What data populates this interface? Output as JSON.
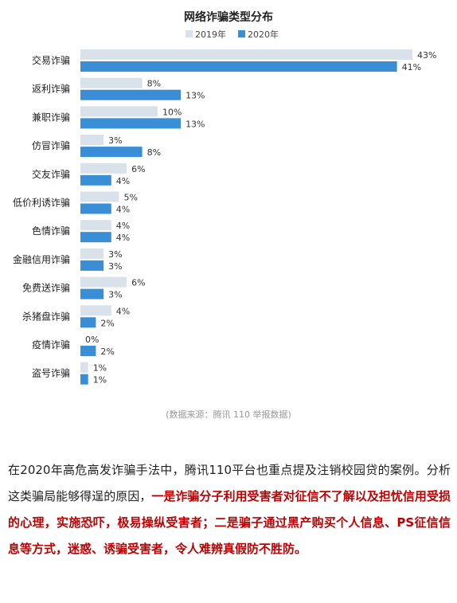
{
  "chart_data": {
    "type": "bar",
    "orientation": "horizontal",
    "title": "网络诈骗类型分布",
    "legend_position": "top",
    "grid": false,
    "xlim": [
      0,
      43
    ],
    "categories": [
      "交易诈骗",
      "返利诈骗",
      "兼职诈骗",
      "仿冒诈骗",
      "交友诈骗",
      "低价利诱诈骗",
      "色情诈骗",
      "金融信用诈骗",
      "免费送诈骗",
      "杀猪盘诈骗",
      "疫情诈骗",
      "盗号诈骗"
    ],
    "series": [
      {
        "name": "2019年",
        "color": "#d9e1ea",
        "values": [
          43,
          8,
          10,
          3,
          6,
          5,
          4,
          3,
          6,
          4,
          0,
          1
        ],
        "labels": [
          "43%",
          "8%",
          "10%",
          "3%",
          "6%",
          "5%",
          "4%",
          "3%",
          "6%",
          "4%",
          "0%",
          "1%"
        ]
      },
      {
        "name": "2020年",
        "color": "#3a8ed6",
        "values": [
          41,
          13,
          13,
          8,
          4,
          4,
          4,
          3,
          3,
          2,
          2,
          1
        ],
        "labels": [
          "41%",
          "13%",
          "13%",
          "8%",
          "4%",
          "4%",
          "4%",
          "3%",
          "3%",
          "2%",
          "2%",
          "1%"
        ]
      }
    ],
    "source_note": "(数据来源：腾讯 110 举报数据)"
  },
  "paragraph": {
    "normal1": "在2020年高危高发诈骗手法中，腾讯110平台也重点提及注销校园贷的案例。分析这类骗局能够得逞的原因，",
    "highlight1": "一是诈骗分子利用受害者对征信不了解以及担忧信用受损的心理，实施恐吓，极易操纵受害者；二是骗子通过黑产购买个人信息、PS征信信息等方式，迷惑、诱骗受害者，令人难辨真假防不胜防。"
  }
}
